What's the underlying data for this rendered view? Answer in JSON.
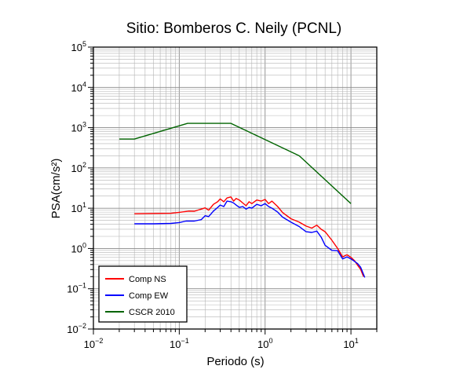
{
  "chart_data": {
    "type": "line",
    "title": "Sitio: Bomberos C. Neily (PCNL)",
    "xlabel": "Periodo (s)",
    "ylabel": "PSA(cm/s²)",
    "x_scale": "log",
    "y_scale": "log",
    "xlim": [
      0.01,
      20
    ],
    "ylim": [
      0.01,
      100000
    ],
    "x_ticks": [
      {
        "value": 0.01,
        "base": "10",
        "exp": "−2"
      },
      {
        "value": 0.1,
        "base": "10",
        "exp": "−1"
      },
      {
        "value": 1,
        "base": "10",
        "exp": "0"
      },
      {
        "value": 10,
        "base": "10",
        "exp": "1"
      }
    ],
    "y_ticks": [
      {
        "value": 0.01,
        "base": "10",
        "exp": "−2"
      },
      {
        "value": 0.1,
        "base": "10",
        "exp": "−1"
      },
      {
        "value": 1,
        "base": "10",
        "exp": "0"
      },
      {
        "value": 10,
        "base": "10",
        "exp": "1"
      },
      {
        "value": 100,
        "base": "10",
        "exp": "2"
      },
      {
        "value": 1000,
        "base": "10",
        "exp": "3"
      },
      {
        "value": 10000,
        "base": "10",
        "exp": "4"
      },
      {
        "value": 100000,
        "base": "10",
        "exp": "5"
      }
    ],
    "grid": true,
    "legend_position": "bottom-left",
    "series": [
      {
        "name": "Comp NS",
        "color": "#ff0000",
        "points": [
          [
            0.03,
            7.3
          ],
          [
            0.05,
            7.4
          ],
          [
            0.08,
            7.5
          ],
          [
            0.1,
            7.9
          ],
          [
            0.13,
            8.5
          ],
          [
            0.15,
            8.4
          ],
          [
            0.18,
            9.5
          ],
          [
            0.2,
            10.2
          ],
          [
            0.22,
            8.9
          ],
          [
            0.25,
            12.5
          ],
          [
            0.28,
            14.5
          ],
          [
            0.3,
            17
          ],
          [
            0.33,
            14.5
          ],
          [
            0.36,
            18
          ],
          [
            0.4,
            19
          ],
          [
            0.43,
            15
          ],
          [
            0.46,
            17.5
          ],
          [
            0.5,
            16
          ],
          [
            0.55,
            13.5
          ],
          [
            0.6,
            11.5
          ],
          [
            0.65,
            14.5
          ],
          [
            0.7,
            13
          ],
          [
            0.8,
            16
          ],
          [
            0.9,
            15
          ],
          [
            1.0,
            16.5
          ],
          [
            1.1,
            13
          ],
          [
            1.2,
            15
          ],
          [
            1.4,
            11
          ],
          [
            1.6,
            7.8
          ],
          [
            2.0,
            5.5
          ],
          [
            2.5,
            4.5
          ],
          [
            3.0,
            3.6
          ],
          [
            3.5,
            3.2
          ],
          [
            4.0,
            3.8
          ],
          [
            4.5,
            3.0
          ],
          [
            5.0,
            2.6
          ],
          [
            6.0,
            1.6
          ],
          [
            7.0,
            1.0
          ],
          [
            8.0,
            0.62
          ],
          [
            9.0,
            0.7
          ],
          [
            10.0,
            0.6
          ],
          [
            11.0,
            0.5
          ],
          [
            12.0,
            0.38
          ],
          [
            13.0,
            0.3
          ],
          [
            14.0,
            0.2
          ]
        ]
      },
      {
        "name": "Comp EW",
        "color": "#0000ff",
        "points": [
          [
            0.03,
            4.1
          ],
          [
            0.05,
            4.1
          ],
          [
            0.08,
            4.2
          ],
          [
            0.1,
            4.4
          ],
          [
            0.12,
            4.8
          ],
          [
            0.15,
            4.8
          ],
          [
            0.18,
            5.2
          ],
          [
            0.2,
            6.5
          ],
          [
            0.22,
            6.2
          ],
          [
            0.25,
            8.5
          ],
          [
            0.28,
            10.5
          ],
          [
            0.3,
            12
          ],
          [
            0.33,
            11
          ],
          [
            0.36,
            15
          ],
          [
            0.4,
            14.5
          ],
          [
            0.43,
            13.5
          ],
          [
            0.46,
            12
          ],
          [
            0.5,
            10.5
          ],
          [
            0.55,
            11
          ],
          [
            0.6,
            9.5
          ],
          [
            0.65,
            10.5
          ],
          [
            0.7,
            10
          ],
          [
            0.8,
            12.5
          ],
          [
            0.9,
            11.5
          ],
          [
            1.0,
            13
          ],
          [
            1.1,
            11
          ],
          [
            1.2,
            10
          ],
          [
            1.4,
            8
          ],
          [
            1.6,
            6
          ],
          [
            2.0,
            4.5
          ],
          [
            2.5,
            3.5
          ],
          [
            3.0,
            2.6
          ],
          [
            3.5,
            2.5
          ],
          [
            4.0,
            2.7
          ],
          [
            4.5,
            1.9
          ],
          [
            5.0,
            1.2
          ],
          [
            6.0,
            0.9
          ],
          [
            7.0,
            0.88
          ],
          [
            8.0,
            0.55
          ],
          [
            9.0,
            0.62
          ],
          [
            10.0,
            0.55
          ],
          [
            11.0,
            0.48
          ],
          [
            12.0,
            0.42
          ],
          [
            13.0,
            0.34
          ],
          [
            14.5,
            0.19
          ]
        ]
      },
      {
        "name": "CSCR 2010",
        "color": "#006400",
        "points": [
          [
            0.02,
            520
          ],
          [
            0.03,
            520
          ],
          [
            0.125,
            1280
          ],
          [
            0.4,
            1280
          ],
          [
            2.5,
            200
          ],
          [
            10.0,
            13
          ]
        ]
      }
    ]
  }
}
